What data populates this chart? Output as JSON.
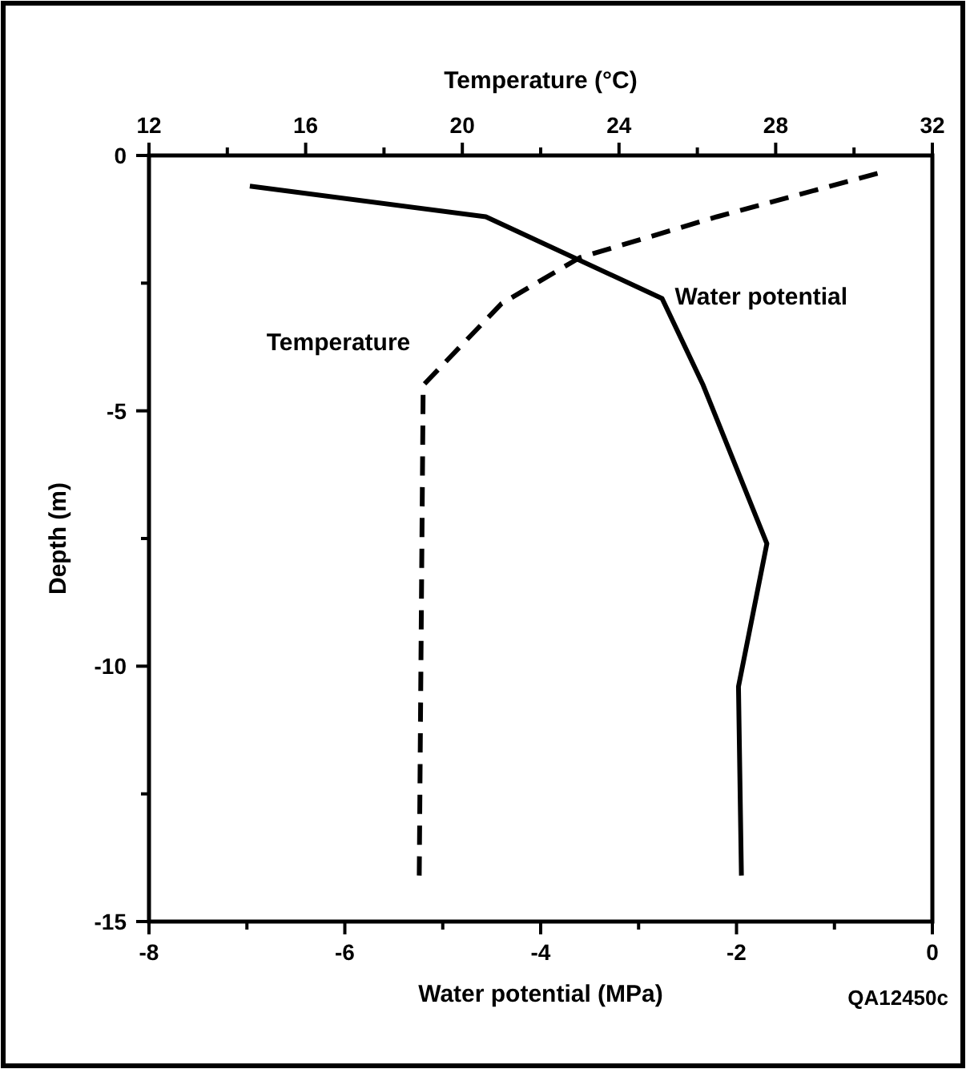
{
  "chart_data": {
    "type": "line",
    "xlabel": "Water potential (MPa)",
    "x2label": "Temperature (°C)",
    "ylabel": "Depth (m)",
    "xlim": [
      -8,
      0
    ],
    "xticks": [
      -8,
      {
        "value": -7,
        "label": null
      },
      -6,
      {
        "value": -5,
        "label": null
      },
      -4,
      {
        "value": -3,
        "label": null
      },
      -2,
      {
        "value": -1,
        "label": null
      },
      0
    ],
    "x2lim": [
      12,
      32
    ],
    "x2ticks": [
      12,
      {
        "value": 14,
        "label": null
      },
      16,
      {
        "value": 18,
        "label": null
      },
      20,
      {
        "value": 22,
        "label": null
      },
      24,
      {
        "value": 26,
        "label": null
      },
      28,
      {
        "value": 30,
        "label": null
      },
      32
    ],
    "ylim": [
      -15,
      0
    ],
    "yticks": [
      -15,
      {
        "value": -12.5,
        "label": null
      },
      -10,
      {
        "value": -7.5,
        "label": null
      },
      -5,
      {
        "value": -2.5,
        "label": null
      },
      0
    ],
    "marker": "none",
    "grid": false,
    "series": [
      {
        "name": "Water potential",
        "color": "#000000",
        "line_style": "solid",
        "x": [
          -6.97,
          -4.56,
          -2.76,
          -2.34,
          -1.69,
          -1.98,
          -1.95
        ],
        "values": [
          -0.6,
          -1.2,
          -2.8,
          -4.5,
          -7.6,
          -10.4,
          -14.1
        ]
      },
      {
        "name": "Temperature",
        "color": "#000000",
        "line_style": "dashed",
        "axis": "x2",
        "x": [
          30.6,
          26.5,
          23.0,
          21.0,
          19.0,
          18.9
        ],
        "values": [
          -0.35,
          -1.2,
          -2.0,
          -2.9,
          -4.5,
          -14.1
        ]
      }
    ],
    "annotations": [
      "QA12450c"
    ]
  }
}
